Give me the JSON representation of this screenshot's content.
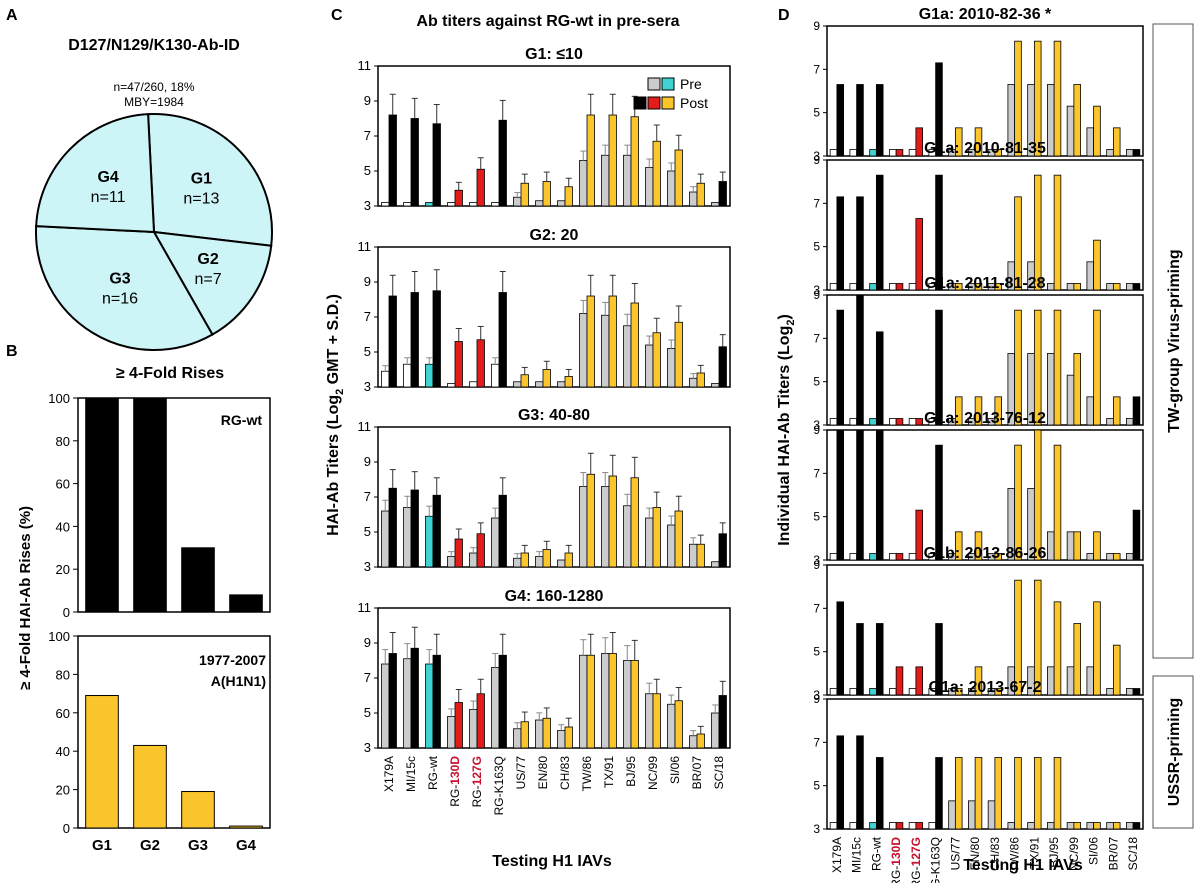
{
  "colors": {
    "black": "#000000",
    "pre_gray": "#cccccc",
    "pre_cyan": "#3fd3d3",
    "post_red": "#e21b1b",
    "post_yellow": "#fbc52c",
    "pie_fill": "#cdf4f6",
    "red_label": "#c8102e"
  },
  "panel_letters": {
    "a": "A",
    "b": "B",
    "c": "C",
    "d": "D"
  },
  "pie": {
    "title": "D127/N129/K130-Ab-ID",
    "line1": "n=47/260, 18%",
    "line2": "MBY=1984",
    "slices": [
      {
        "label": "G1",
        "n_text": "n=13",
        "value": 13
      },
      {
        "label": "G2",
        "n_text": "n=7",
        "value": 7
      },
      {
        "label": "G3",
        "n_text": "n=16",
        "value": 16
      },
      {
        "label": "G4",
        "n_text": "n=11",
        "value": 11
      }
    ]
  },
  "panel_b": {
    "title": "≥ 4-Fold Rises",
    "ylabel": "≥ 4-Fold  HAI-Ab Rises (%)",
    "categories": [
      "G1",
      "G2",
      "G3",
      "G4"
    ],
    "ylim": [
      0,
      100
    ],
    "yticks": [
      "0",
      "20",
      "40",
      "60",
      "80",
      "100"
    ],
    "rgwt": {
      "label": "RG-wt",
      "values": [
        100,
        100,
        30,
        8
      ]
    },
    "h1n1": {
      "label1": "1977-2007",
      "label2": "A(H1N1)",
      "values": [
        69,
        43,
        19,
        1
      ]
    }
  },
  "chart_data": [
    {
      "type": "bar",
      "title": "G1: ≤10",
      "categories": [
        "X179A",
        "MI/15c",
        "RG-wt",
        "RG-130D",
        "RG-127G",
        "RG-K163Q",
        "US/77",
        "EN/80",
        "CH/83",
        "TW/86",
        "TX/91",
        "BJ/95",
        "NC/99",
        "SI/06",
        "BR/07",
        "SC/18"
      ],
      "series": [
        {
          "name": "Pre",
          "values": [
            3.2,
            3.2,
            3.2,
            3.2,
            3.2,
            3.2,
            3.5,
            3.3,
            3.3,
            5.6,
            5.9,
            5.9,
            5.2,
            5.0,
            3.8,
            3.2
          ]
        },
        {
          "name": "Post",
          "values": [
            8.2,
            8.0,
            7.7,
            3.9,
            5.1,
            7.9,
            4.3,
            4.4,
            4.1,
            8.2,
            8.2,
            8.1,
            6.7,
            6.2,
            4.3,
            4.4
          ]
        }
      ],
      "ylim": [
        3,
        11
      ]
    },
    {
      "type": "bar",
      "title": "G2: 20",
      "categories": [
        "X179A",
        "MI/15c",
        "RG-wt",
        "RG-130D",
        "RG-127G",
        "RG-K163Q",
        "US/77",
        "EN/80",
        "CH/83",
        "TW/86",
        "TX/91",
        "BJ/95",
        "NC/99",
        "SI/06",
        "BR/07",
        "SC/18"
      ],
      "series": [
        {
          "name": "Pre",
          "values": [
            3.9,
            4.3,
            4.3,
            3.2,
            3.3,
            4.3,
            3.3,
            3.3,
            3.3,
            7.2,
            7.1,
            6.5,
            5.4,
            5.2,
            3.5,
            3.2
          ]
        },
        {
          "name": "Post",
          "values": [
            8.2,
            8.4,
            8.5,
            5.6,
            5.7,
            8.4,
            3.7,
            4.0,
            3.6,
            8.2,
            8.2,
            7.8,
            6.1,
            6.7,
            3.8,
            5.3
          ]
        }
      ],
      "ylim": [
        3,
        11
      ]
    },
    {
      "type": "bar",
      "title": "G3: 40-80",
      "categories": [
        "X179A",
        "MI/15c",
        "RG-wt",
        "RG-130D",
        "RG-127G",
        "RG-K163Q",
        "US/77",
        "EN/80",
        "CH/83",
        "TW/86",
        "TX/91",
        "BJ/95",
        "NC/99",
        "SI/06",
        "BR/07",
        "SC/18"
      ],
      "series": [
        {
          "name": "Pre",
          "values": [
            6.2,
            6.4,
            5.9,
            3.6,
            3.8,
            5.8,
            3.5,
            3.6,
            3.4,
            7.6,
            7.6,
            6.5,
            5.8,
            5.4,
            4.3,
            3.3
          ]
        },
        {
          "name": "Post",
          "values": [
            7.5,
            7.4,
            7.1,
            4.6,
            4.9,
            7.1,
            3.8,
            4.0,
            3.8,
            8.3,
            8.2,
            8.1,
            6.4,
            6.2,
            4.3,
            4.9
          ]
        }
      ],
      "ylim": [
        3,
        11
      ]
    },
    {
      "type": "bar",
      "title": "G4: 160-1280",
      "categories": [
        "X179A",
        "MI/15c",
        "RG-wt",
        "RG-130D",
        "RG-127G",
        "RG-K163Q",
        "US/77",
        "EN/80",
        "CH/83",
        "TW/86",
        "TX/91",
        "BJ/95",
        "NC/99",
        "SI/06",
        "BR/07",
        "SC/18"
      ],
      "series": [
        {
          "name": "Pre",
          "values": [
            7.8,
            8.1,
            7.8,
            4.8,
            5.2,
            7.6,
            4.1,
            4.6,
            4.0,
            8.3,
            8.4,
            8.0,
            6.1,
            5.5,
            3.7,
            5.0
          ]
        },
        {
          "name": "Post",
          "values": [
            8.4,
            8.7,
            8.3,
            5.6,
            6.1,
            8.3,
            4.5,
            4.7,
            4.2,
            8.3,
            8.4,
            8.0,
            6.1,
            5.7,
            3.8,
            6.0
          ]
        }
      ],
      "ylim": [
        3,
        11
      ]
    },
    {
      "type": "bar",
      "title": "G1a: 2010-82-36 *",
      "categories": [
        "X179A",
        "MI/15c",
        "RG-wt",
        "RG-130D",
        "RG-127G",
        "RG-K163Q",
        "US/77",
        "EN/80",
        "CH/83",
        "TW/86",
        "TX/91",
        "BJ/95",
        "NC/99",
        "SI/06",
        "BR/07",
        "SC/18"
      ],
      "series": [
        {
          "name": "Pre",
          "values": [
            3.3,
            3.3,
            3.3,
            3.3,
            3.3,
            3.3,
            3.3,
            3.3,
            3.3,
            6.3,
            6.3,
            6.3,
            5.3,
            4.3,
            3.3,
            3.3
          ]
        },
        {
          "name": "Post",
          "values": [
            6.3,
            6.3,
            6.3,
            3.3,
            4.3,
            7.3,
            4.3,
            4.3,
            3.3,
            8.3,
            8.3,
            8.3,
            6.3,
            5.3,
            4.3,
            3.3
          ]
        }
      ],
      "ylim": [
        3,
        9
      ]
    },
    {
      "type": "bar",
      "title": "G1a: 2010-81-35",
      "categories": [
        "X179A",
        "MI/15c",
        "RG-wt",
        "RG-130D",
        "RG-127G",
        "RG-K163Q",
        "US/77",
        "EN/80",
        "CH/83",
        "TW/86",
        "TX/91",
        "BJ/95",
        "NC/99",
        "SI/06",
        "BR/07",
        "SC/18"
      ],
      "series": [
        {
          "name": "Pre",
          "values": [
            3.3,
            3.3,
            3.3,
            3.3,
            3.3,
            3.3,
            3.3,
            3.3,
            3.3,
            4.3,
            4.3,
            3.3,
            3.3,
            4.3,
            3.3,
            3.3
          ]
        },
        {
          "name": "Post",
          "values": [
            7.3,
            7.3,
            8.3,
            3.3,
            6.3,
            8.3,
            3.3,
            3.3,
            3.3,
            7.3,
            8.3,
            8.3,
            3.3,
            5.3,
            3.3,
            3.3
          ]
        }
      ],
      "ylim": [
        3,
        9
      ]
    },
    {
      "type": "bar",
      "title": "G1a: 2011-81-28",
      "categories": [
        "X179A",
        "MI/15c",
        "RG-wt",
        "RG-130D",
        "RG-127G",
        "RG-K163Q",
        "US/77",
        "EN/80",
        "CH/83",
        "TW/86",
        "TX/91",
        "BJ/95",
        "NC/99",
        "SI/06",
        "BR/07",
        "SC/18"
      ],
      "series": [
        {
          "name": "Pre",
          "values": [
            3.3,
            3.3,
            3.3,
            3.3,
            3.3,
            3.3,
            3.3,
            3.3,
            3.3,
            6.3,
            6.3,
            6.3,
            5.3,
            4.3,
            3.3,
            3.3
          ]
        },
        {
          "name": "Post",
          "values": [
            8.3,
            9.0,
            7.3,
            3.3,
            3.3,
            8.3,
            4.3,
            4.3,
            4.3,
            8.3,
            8.3,
            8.3,
            6.3,
            8.3,
            4.3,
            4.3
          ]
        }
      ],
      "ylim": [
        3,
        9
      ]
    },
    {
      "type": "bar",
      "title": "G1a: 2013-76-12",
      "categories": [
        "X179A",
        "MI/15c",
        "RG-wt",
        "RG-130D",
        "RG-127G",
        "RG-K163Q",
        "US/77",
        "EN/80",
        "CH/83",
        "TW/86",
        "TX/91",
        "BJ/95",
        "NC/99",
        "SI/06",
        "BR/07",
        "SC/18"
      ],
      "series": [
        {
          "name": "Pre",
          "values": [
            3.3,
            3.3,
            3.3,
            3.3,
            3.3,
            3.3,
            3.3,
            3.3,
            3.3,
            6.3,
            6.3,
            4.3,
            4.3,
            3.3,
            3.3,
            3.3
          ]
        },
        {
          "name": "Post",
          "values": [
            9.0,
            9.0,
            9.0,
            3.3,
            5.3,
            8.3,
            4.3,
            4.3,
            3.3,
            8.3,
            9.0,
            8.3,
            4.3,
            4.3,
            3.3,
            5.3
          ]
        }
      ],
      "ylim": [
        3,
        9
      ]
    },
    {
      "type": "bar",
      "title": "G1b: 2013-86-26",
      "categories": [
        "X179A",
        "MI/15c",
        "RG-wt",
        "RG-130D",
        "RG-127G",
        "RG-K163Q",
        "US/77",
        "EN/80",
        "CH/83",
        "TW/86",
        "TX/91",
        "BJ/95",
        "NC/99",
        "SI/06",
        "BR/07",
        "SC/18"
      ],
      "series": [
        {
          "name": "Pre",
          "values": [
            3.3,
            3.3,
            3.3,
            3.3,
            3.3,
            3.3,
            3.3,
            3.3,
            3.3,
            4.3,
            4.3,
            4.3,
            4.3,
            4.3,
            3.3,
            3.3
          ]
        },
        {
          "name": "Post",
          "values": [
            7.3,
            6.3,
            6.3,
            4.3,
            4.3,
            6.3,
            3.3,
            4.3,
            3.3,
            8.3,
            8.3,
            7.3,
            6.3,
            7.3,
            5.3,
            3.3
          ]
        }
      ],
      "ylim": [
        3,
        9
      ]
    },
    {
      "type": "bar",
      "title": "G1a: 2013-67-2",
      "categories": [
        "X179A",
        "MI/15c",
        "RG-wt",
        "RG-130D",
        "RG-127G",
        "RG-K163Q",
        "US/77",
        "EN/80",
        "CH/83",
        "TW/86",
        "TX/91",
        "BJ/95",
        "NC/99",
        "SI/06",
        "BR/07",
        "SC/18"
      ],
      "series": [
        {
          "name": "Pre",
          "values": [
            3.3,
            3.3,
            3.3,
            3.3,
            3.3,
            3.3,
            4.3,
            4.3,
            4.3,
            3.3,
            3.3,
            3.3,
            3.3,
            3.3,
            3.3,
            3.3
          ]
        },
        {
          "name": "Post",
          "values": [
            7.3,
            7.3,
            6.3,
            3.3,
            3.3,
            6.3,
            6.3,
            6.3,
            6.3,
            6.3,
            6.3,
            6.3,
            3.3,
            3.3,
            3.3,
            3.3
          ]
        }
      ],
      "ylim": [
        3,
        9
      ]
    }
  ],
  "panel_c": {
    "title": "Ab titers against RG-wt in pre-sera",
    "ylabel": "HAI-Ab Titers (Log",
    "ylabel_sub": "2",
    "ylabel_tail": " GMT + S.D.)",
    "yticks": [
      "3",
      "5",
      "7",
      "9",
      "11"
    ],
    "xlabel": "Testing H1 IAVs",
    "legend_pre": "Pre",
    "legend_post": "Post"
  },
  "panel_d": {
    "ylabel": "Individual HAI-Ab Titers (Log",
    "ylabel_sub": "2",
    "ylabel_tail": ")",
    "yticks": [
      "3",
      "5",
      "7",
      "9"
    ],
    "xlabel": "Testing H1 IAVs",
    "side1": "TW-group Virus-priming",
    "side2": "USSR-priming"
  },
  "xcats": {
    "plain": [
      "X179A",
      "MI/15c",
      "RG-wt"
    ],
    "rg130_pre": "RG-",
    "rg130_red": "130D",
    "rg127_pre": "RG-",
    "rg127_red": "127G",
    "rest": [
      "RG-K163Q",
      "US/77",
      "EN/80",
      "CH/83",
      "TW/86",
      "TX/91",
      "BJ/95",
      "NC/99",
      "SI/06",
      "BR/07",
      "SC/18"
    ]
  }
}
